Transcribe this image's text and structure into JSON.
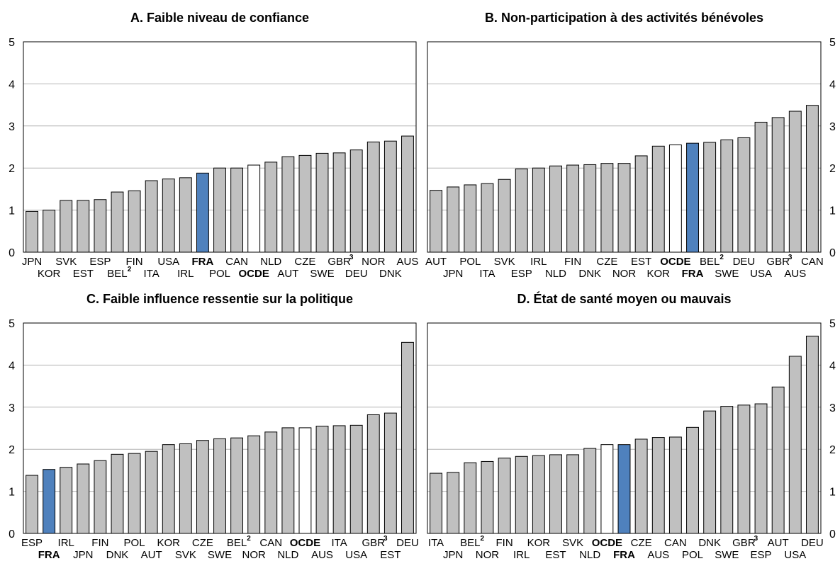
{
  "colors": {
    "default": "#c0c0c0",
    "fra": "#4f81bd",
    "ocde": "#ffffff",
    "outline": "#000000",
    "grid": "#b4b4b4"
  },
  "chart_data": [
    {
      "type": "bar",
      "title": "A. Faible niveau de confiance",
      "ylim": [
        0,
        5
      ],
      "yticks": [
        0,
        1,
        2,
        3,
        4,
        5
      ],
      "yaxis_side": "left",
      "grid": true,
      "categories": [
        "JPN",
        "KOR",
        "SVK",
        "EST",
        "ESP",
        "BEL",
        "FIN",
        "ITA",
        "USA",
        "IRL",
        "FRA",
        "POL",
        "CAN",
        "OCDE",
        "NLD",
        "AUT",
        "CZE",
        "SWE",
        "GBR",
        "DEU",
        "NOR",
        "DNK",
        "AUS"
      ],
      "superscripts": {
        "BEL": "2",
        "GBR": "3"
      },
      "values": [
        0.97,
        1.0,
        1.23,
        1.23,
        1.25,
        1.43,
        1.46,
        1.7,
        1.74,
        1.77,
        1.88,
        2.0,
        2.0,
        2.07,
        2.14,
        2.27,
        2.3,
        2.35,
        2.36,
        2.43,
        2.62,
        2.64,
        2.76
      ]
    },
    {
      "type": "bar",
      "title": "B. Non-participation à des activités bénévoles",
      "ylim": [
        0,
        5
      ],
      "yticks": [
        0,
        1,
        2,
        3,
        4,
        5
      ],
      "yaxis_side": "right",
      "grid": true,
      "categories": [
        "AUT",
        "JPN",
        "POL",
        "ITA",
        "SVK",
        "ESP",
        "IRL",
        "NLD",
        "FIN",
        "DNK",
        "CZE",
        "NOR",
        "EST",
        "KOR",
        "OCDE",
        "FRA",
        "BEL",
        "SWE",
        "DEU",
        "USA",
        "GBR",
        "AUS",
        "CAN"
      ],
      "superscripts": {
        "BEL": "2",
        "GBR": "3"
      },
      "values": [
        1.47,
        1.55,
        1.6,
        1.63,
        1.73,
        1.98,
        2.0,
        2.05,
        2.07,
        2.08,
        2.11,
        2.11,
        2.29,
        2.52,
        2.55,
        2.59,
        2.61,
        2.67,
        2.72,
        3.09,
        3.2,
        3.35,
        3.49
      ]
    },
    {
      "type": "bar",
      "title": "C. Faible influence ressentie sur la politique",
      "ylim": [
        0,
        5
      ],
      "yticks": [
        0,
        1,
        2,
        3,
        4,
        5
      ],
      "yaxis_side": "left",
      "grid": true,
      "categories": [
        "ESP",
        "FRA",
        "IRL",
        "JPN",
        "FIN",
        "DNK",
        "POL",
        "AUT",
        "KOR",
        "SVK",
        "CZE",
        "SWE",
        "BEL",
        "NOR",
        "CAN",
        "NLD",
        "OCDE",
        "AUS",
        "ITA",
        "USA",
        "GBR",
        "EST",
        "DEU"
      ],
      "superscripts": {
        "BEL": "2",
        "GBR": "3"
      },
      "values": [
        1.38,
        1.52,
        1.57,
        1.65,
        1.73,
        1.88,
        1.9,
        1.95,
        2.11,
        2.13,
        2.21,
        2.25,
        2.27,
        2.32,
        2.41,
        2.51,
        2.51,
        2.55,
        2.56,
        2.57,
        2.82,
        2.86,
        4.54
      ]
    },
    {
      "type": "bar",
      "title": "D. État de santé moyen ou mauvais",
      "ylim": [
        0,
        5
      ],
      "yticks": [
        0,
        1,
        2,
        3,
        4,
        5
      ],
      "yaxis_side": "right",
      "grid": true,
      "categories": [
        "ITA",
        "JPN",
        "BEL",
        "NOR",
        "FIN",
        "IRL",
        "KOR",
        "EST",
        "SVK",
        "NLD",
        "OCDE",
        "FRA",
        "CZE",
        "AUS",
        "CAN",
        "POL",
        "DNK",
        "SWE",
        "GBR",
        "ESP",
        "AUT",
        "USA",
        "DEU"
      ],
      "superscripts": {
        "BEL": "2",
        "GBR": "3"
      },
      "values": [
        1.43,
        1.45,
        1.68,
        1.71,
        1.79,
        1.83,
        1.85,
        1.87,
        1.87,
        2.02,
        2.11,
        2.11,
        2.24,
        2.28,
        2.29,
        2.52,
        2.91,
        3.02,
        3.05,
        3.08,
        3.48,
        4.21,
        4.69
      ]
    }
  ]
}
